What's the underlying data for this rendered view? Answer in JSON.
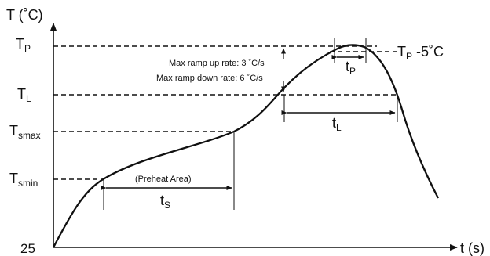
{
  "axes": {
    "y_title": "T (˚C)",
    "x_title": "t (s)",
    "origin_label": "25"
  },
  "levels": {
    "tp": {
      "main": "T",
      "sub": "P"
    },
    "tl": {
      "main": "T",
      "sub": "L"
    },
    "tsmax": {
      "main": "T",
      "sub": "smax"
    },
    "tsmin": {
      "main": "T",
      "sub": "smin"
    }
  },
  "annotations": {
    "ramp_up": "Max ramp up rate: 3 ˚C/s",
    "ramp_down": "Max ramp down rate: 6 ˚C/s",
    "tp_minus5": {
      "main": "T",
      "sub": "P",
      "suffix": " -5˚C"
    },
    "preheat_area": "(Preheat Area)"
  },
  "intervals": {
    "ts": {
      "main": "t",
      "sub": "S"
    },
    "tp": {
      "main": "t",
      "sub": "P"
    },
    "tl": {
      "main": "t",
      "sub": "L"
    }
  },
  "colors": {
    "line": "#111111",
    "background": "#ffffff"
  }
}
